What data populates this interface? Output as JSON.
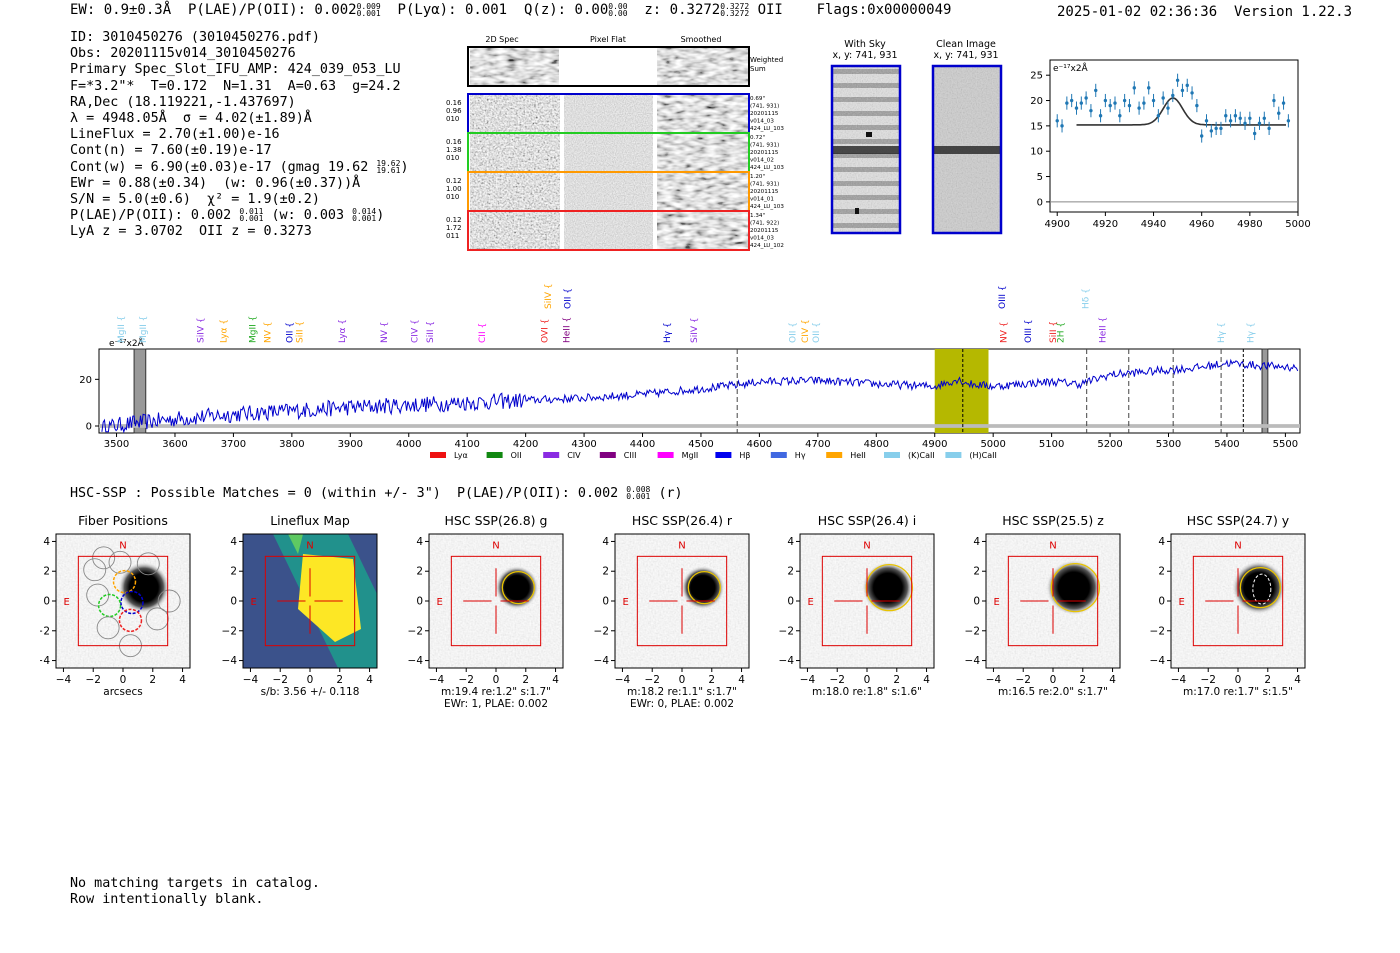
{
  "header": {
    "topline": "EW: 0.9±0.3Å  P(LAE)/P(OII): 0.002",
    "topline_sup": [
      "0.009",
      "0.001"
    ],
    "plya": "P(Lyα): 0.001  Q(z): 0.00",
    "q_sup": [
      "0.00",
      "0.00"
    ],
    "z_text": "z: 0.3272",
    "z_sup": [
      "0.3272",
      "0.3272"
    ],
    "z_after": "OII    Flags:0x00000049",
    "stamp": "2025-01-02 02:36:36  Version 1.22.3"
  },
  "info": {
    "id": "ID: 3010450276 (3010450276.pdf)",
    "obs": "Obs: 20201115v014_3010450276",
    "primary": "Primary Spec_Slot_IFU_AMP: 424_039_053_LU",
    "f": "F=*3.2\"*  T=0.172  N=1.31  A=0.63  g=24.2",
    "radec": "RA,Dec (18.119221,-1.437697)",
    "lambda": "λ = 4948.05Å  σ = 4.02(±1.89)Å",
    "lineflux": "LineFlux = 2.70(±1.00)e-16",
    "contn": "Cont(n) = 7.60(±0.19)e-17",
    "contw": "Cont(w) = 6.90(±0.03)e-17 (gmag 19.62",
    "contw_sup": [
      "19.62",
      "19.61"
    ],
    "contw_end": ")",
    "ewr": "EWr = 0.88(±0.34)  (w: 0.96(±0.37))Å",
    "sn": "S/N = 5.0(±0.6)  χ² = 1.9(±0.2)",
    "plae": "P(LAE)/P(OII): 0.002",
    "plae_sup": [
      "0.011",
      "0.001"
    ],
    "plae_w": "(w: 0.003",
    "plae_w_sup": [
      "0.014",
      "0.001"
    ],
    "plae_end": ")",
    "lyaz": "LyA z = 3.0702  OII z = 0.3273"
  },
  "cutouts": {
    "col_titles": [
      "2D Spec",
      "Pixel Flat",
      "Smoothed"
    ],
    "weighted": [
      "Weighted",
      "Sum"
    ],
    "rows": [
      {
        "left": [
          "0.16",
          "0.96",
          "010"
        ],
        "right": [
          "0.69\"",
          "(741, 931)",
          "20201115",
          "v014_03",
          "424_LU_103"
        ],
        "color": "#0000cc"
      },
      {
        "left": [
          "0.16",
          "1.38",
          "010"
        ],
        "right": [
          "0.72\"",
          "(741, 931)",
          "20201115",
          "v014_02",
          "424_LU_103"
        ],
        "color": "#22cc22"
      },
      {
        "left": [
          "0.12",
          "1.00",
          "010"
        ],
        "right": [
          "1.20\"",
          "(741, 931)",
          "20201115",
          "v014_01",
          "424_LU_103"
        ],
        "color": "#ff9900"
      },
      {
        "left": [
          "0.12",
          "1.72",
          "011"
        ],
        "right": [
          "1.34\"",
          "(741, 922)",
          "20201115",
          "v014_03",
          "424_LU_102"
        ],
        "color": "#ee2222"
      }
    ],
    "with_sky": [
      "With Sky",
      "x, y: 741, 931"
    ],
    "clean": [
      "Clean Image",
      "x, y: 741, 931"
    ]
  },
  "fit_chart": {
    "type": "scatter",
    "unit_label": "e⁻¹⁷x2Å",
    "xlim": [
      4897,
      5000
    ],
    "ylim": [
      -2,
      28
    ],
    "xticks": [
      4900,
      4920,
      4940,
      4960,
      4980,
      5000
    ],
    "yticks": [
      0,
      5,
      10,
      15,
      20,
      25
    ],
    "x": [
      4900,
      4902,
      4904,
      4906,
      4908,
      4910,
      4912,
      4914,
      4916,
      4918,
      4920,
      4922,
      4924,
      4926,
      4928,
      4930,
      4932,
      4934,
      4936,
      4938,
      4940,
      4942,
      4944,
      4946,
      4948,
      4950,
      4952,
      4954,
      4956,
      4958,
      4960,
      4962,
      4964,
      4966,
      4968,
      4970,
      4972,
      4974,
      4976,
      4978,
      4980,
      4982,
      4984,
      4986,
      4988,
      4990,
      4992,
      4994,
      4996
    ],
    "y": [
      16,
      15,
      19.5,
      20,
      18.5,
      19.5,
      20.5,
      18,
      22,
      17,
      20,
      19,
      19.5,
      17,
      20,
      19,
      22.5,
      18.5,
      19.5,
      22.5,
      20,
      17,
      20.5,
      18.5,
      21,
      24,
      22,
      23,
      21.5,
      19,
      13,
      16,
      14,
      14.5,
      14.5,
      17,
      16,
      17,
      16.5,
      15.5,
      16.5,
      13.5,
      15.5,
      16.5,
      14.5,
      20,
      17.5,
      19.5,
      16
    ],
    "model": {
      "baseline": 15.2,
      "center": 4948.05,
      "sigma": 4.02,
      "amplitude": 5.3
    }
  },
  "spectrum": {
    "type": "line",
    "unit_label": "e⁻¹⁷x2Å",
    "xlim": [
      3470,
      5525
    ],
    "ylim": [
      -3,
      33
    ],
    "xticks": [
      3500,
      3600,
      3700,
      3800,
      3900,
      4000,
      4100,
      4200,
      4300,
      4400,
      4500,
      4600,
      4700,
      4800,
      4900,
      5000,
      5100,
      5200,
      5300,
      5400,
      5500
    ],
    "yticks": [
      0,
      20
    ],
    "anchors_x": [
      3470,
      3520,
      3560,
      3600,
      3700,
      3800,
      3900,
      4000,
      4100,
      4200,
      4300,
      4400,
      4500,
      4560,
      4600,
      4700,
      4800,
      4900,
      4940,
      4960,
      5000,
      5100,
      5150,
      5200,
      5300,
      5350,
      5400,
      5450,
      5525
    ],
    "anchors_y": [
      -1,
      1,
      2,
      3,
      5,
      6.5,
      8,
      9,
      10,
      11,
      12,
      13.5,
      16,
      17.5,
      19,
      19.5,
      18,
      17,
      20,
      18,
      17,
      19,
      18,
      22,
      24,
      25,
      27,
      26,
      25
    ],
    "highlight_band": [
      4900,
      4992
    ],
    "gray_bands": [
      [
        3530,
        3550
      ],
      [
        5460,
        5470
      ]
    ],
    "dashed_lines": [
      4562,
      5160,
      5232,
      5308,
      5390
    ],
    "dotted_lines": [
      4948,
      5428
    ],
    "top_labels": [
      {
        "name": "MgII",
        "x": 3508,
        "color": "#87ceeb",
        "row": 0
      },
      {
        "name": "MgII",
        "x": 3545,
        "color": "#87ceeb",
        "row": 0
      },
      {
        "name": "SiIV",
        "x": 3644,
        "color": "#8a2be2",
        "row": 0
      },
      {
        "name": "Lyα",
        "x": 3683,
        "color": "#ffa500",
        "row": 0
      },
      {
        "name": "MgII",
        "x": 3733,
        "color": "#22aa22",
        "row": 0
      },
      {
        "name": "NV",
        "x": 3758,
        "color": "#ffa500",
        "row": 0
      },
      {
        "name": "OII",
        "x": 3796,
        "color": "#0000cc",
        "row": 0
      },
      {
        "name": "SiII",
        "x": 3813,
        "color": "#ffa500",
        "row": 0
      },
      {
        "name": "Lyα",
        "x": 3886,
        "color": "#8a2be2",
        "row": 0
      },
      {
        "name": "NV",
        "x": 3958,
        "color": "#8a2be2",
        "row": 0
      },
      {
        "name": "CIV",
        "x": 4010,
        "color": "#8a2be2",
        "row": 0
      },
      {
        "name": "SiII",
        "x": 4036,
        "color": "#8a2be2",
        "row": 0
      },
      {
        "name": "CII",
        "x": 4125,
        "color": "#ff00ff",
        "row": 0
      },
      {
        "name": "OVI",
        "x": 4232,
        "color": "#ee2222",
        "row": 0
      },
      {
        "name": "HeII",
        "x": 4270,
        "color": "#800080",
        "row": 0
      },
      {
        "name": "SiIV",
        "x": 4238,
        "color": "#ffa500",
        "row": 1
      },
      {
        "name": "OII",
        "x": 4272,
        "color": "#0000cc",
        "row": 1
      },
      {
        "name": "Hγ",
        "x": 4442,
        "color": "#0000cc",
        "row": 0
      },
      {
        "name": "SiIV",
        "x": 4488,
        "color": "#8a2be2",
        "row": 0
      },
      {
        "name": "OII",
        "x": 4657,
        "color": "#87ceeb",
        "row": 0
      },
      {
        "name": "CIV",
        "x": 4678,
        "color": "#ffa500",
        "row": 0
      },
      {
        "name": "OII",
        "x": 4697,
        "color": "#87ceeb",
        "row": 0
      },
      {
        "name": "OIII",
        "x": 5015,
        "color": "#0000cc",
        "row": 1
      },
      {
        "name": "NV",
        "x": 5018,
        "color": "#ee2222",
        "row": 0
      },
      {
        "name": "OIII",
        "x": 5060,
        "color": "#0000cc",
        "row": 0
      },
      {
        "name": "SiII",
        "x": 5102,
        "color": "#ee2222",
        "row": 0
      },
      {
        "name": "2H",
        "x": 5115,
        "color": "#22aa22",
        "row": 0
      },
      {
        "name": "Hδ",
        "x": 5158,
        "color": "#87ceeb",
        "row": 1
      },
      {
        "name": "HeII",
        "x": 5187,
        "color": "#8a2be2",
        "row": 0
      },
      {
        "name": "Hγ",
        "x": 5390,
        "color": "#87ceeb",
        "row": 0
      },
      {
        "name": "Hγ",
        "x": 5440,
        "color": "#87ceeb",
        "row": 0
      }
    ],
    "legend": [
      {
        "label": "Lyα",
        "color": "#ee1111"
      },
      {
        "label": "OII",
        "color": "#118811"
      },
      {
        "label": "CIV",
        "color": "#8a2be2"
      },
      {
        "label": "CIII",
        "color": "#800080"
      },
      {
        "label": "MgII",
        "color": "#ff00ff"
      },
      {
        "label": "Hβ",
        "color": "#0000ee"
      },
      {
        "label": "Hγ",
        "color": "#4169e1"
      },
      {
        "label": "HeII",
        "color": "#ffa500"
      },
      {
        "label": "(K)CaII",
        "color": "#87ceeb"
      },
      {
        "label": "(H)CaII",
        "color": "#87ceeb"
      }
    ]
  },
  "hsc": {
    "line": "HSC-SSP : Possible Matches = 0 (within +/- 3\")  P(LAE)/P(OII): 0.002",
    "line_sup": [
      "0.008",
      "0.001"
    ],
    "line_end": "(r)",
    "compass": {
      "n": "N",
      "e": "E"
    },
    "ticks": [
      "−4",
      "−2",
      "0",
      "2",
      "4"
    ],
    "panels": [
      {
        "title": "Fiber Positions",
        "caption": [
          "arcsecs"
        ]
      },
      {
        "title": "Lineflux Map",
        "caption": [
          "s/b: 3.56 +/- 0.118"
        ]
      },
      {
        "title": "HSC SSP(26.8) g",
        "caption": [
          "m:19.4  re:1.2\"  s:1.7\"",
          "EWr: 1, PLAE: 0.002"
        ]
      },
      {
        "title": "HSC SSP(26.4) r",
        "caption": [
          "m:18.2  re:1.1\"  s:1.7\"",
          "EWr: 0, PLAE: 0.002"
        ]
      },
      {
        "title": "HSC SSP(26.4) i",
        "caption": [
          "m:18.0  re:1.8\"  s:1.6\""
        ]
      },
      {
        "title": "HSC SSP(25.5) z",
        "caption": [
          "m:16.5  re:2.0\"  s:1.7\""
        ]
      },
      {
        "title": "HSC SSP(24.7) y",
        "caption": [
          "m:17.0  re:1.7\"  s:1.5\""
        ]
      }
    ]
  },
  "catalog": {
    "line1": "No matching targets in catalog.",
    "line2": "Row intentionally blank."
  },
  "colors": {
    "blue": "#0000cc",
    "fit": "#1f77b4",
    "olive": "#b5b800",
    "red": "#dd0000",
    "gold": "#e8c300"
  }
}
